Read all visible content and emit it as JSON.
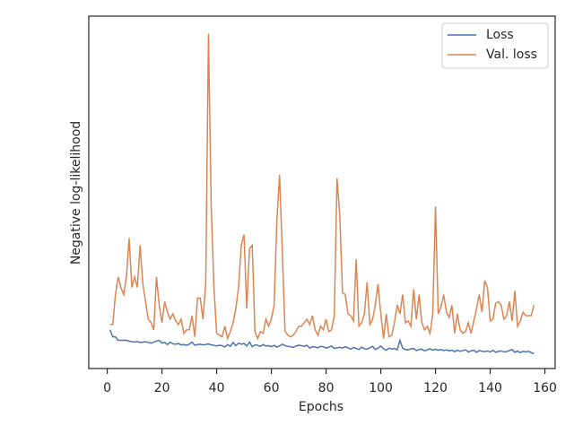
{
  "chart_data": {
    "type": "line",
    "xlabel": "Epochs",
    "ylabel": "Negative log-likelihood",
    "x": [
      1,
      2,
      3,
      4,
      5,
      6,
      7,
      8,
      9,
      10,
      11,
      12,
      13,
      14,
      15,
      16,
      17,
      18,
      19,
      20,
      21,
      22,
      23,
      24,
      25,
      26,
      27,
      28,
      29,
      30,
      31,
      32,
      33,
      34,
      35,
      36,
      37,
      38,
      39,
      40,
      41,
      42,
      43,
      44,
      45,
      46,
      47,
      48,
      49,
      50,
      51,
      52,
      53,
      54,
      55,
      56,
      57,
      58,
      59,
      60,
      61,
      62,
      63,
      64,
      65,
      66,
      67,
      68,
      69,
      70,
      71,
      72,
      73,
      74,
      75,
      76,
      77,
      78,
      79,
      80,
      81,
      82,
      83,
      84,
      85,
      86,
      87,
      88,
      89,
      90,
      91,
      92,
      93,
      94,
      95,
      96,
      97,
      98,
      99,
      100,
      101,
      102,
      103,
      104,
      105,
      106,
      107,
      108,
      109,
      110,
      111,
      112,
      113,
      114,
      115,
      116,
      117,
      118,
      119,
      120,
      121,
      122,
      123,
      124,
      125,
      126,
      127,
      128,
      129,
      130,
      131,
      132,
      133,
      134,
      135,
      136,
      137,
      138,
      139,
      140,
      141,
      142,
      143,
      144,
      145,
      146,
      147,
      148,
      149,
      150,
      151,
      152,
      153,
      154,
      155,
      156
    ],
    "series": [
      {
        "name": "Loss",
        "color": "#4c72b0",
        "values": [
          11,
          9,
          9,
          8,
          8,
          8,
          8,
          7.8,
          7.6,
          7.5,
          7.7,
          7.4,
          7.5,
          7.6,
          7.4,
          7.2,
          7.5,
          7.8,
          8,
          7.2,
          7.4,
          6.8,
          7.5,
          7,
          6.9,
          7.1,
          6.7,
          6.8,
          6.6,
          6.9,
          7.5,
          6.6,
          6.8,
          6.9,
          6.7,
          6.8,
          7,
          6.7,
          6.6,
          6.4,
          6.6,
          6.5,
          6.1,
          6.8,
          6.3,
          7.4,
          6.5,
          7.2,
          6.9,
          7.1,
          6.4,
          7.5,
          6.2,
          6.7,
          6.6,
          6.3,
          6.8,
          6.4,
          6.5,
          6.2,
          6.6,
          6.1,
          6.4,
          6.9,
          6.5,
          6.3,
          6.2,
          6,
          6.4,
          6.6,
          6.5,
          6.3,
          6.6,
          5.8,
          6.2,
          6.1,
          5.9,
          6.3,
          6.2,
          5.8,
          6.1,
          6.4,
          5.7,
          5.9,
          6,
          5.8,
          6.2,
          5.9,
          5.5,
          6,
          5.7,
          5.4,
          6.1,
          5.6,
          5.5,
          5.9,
          6.3,
          5.4,
          5.8,
          6.4,
          5.6,
          5.2,
          5.8,
          5.5,
          5.7,
          5.3,
          8,
          5.8,
          5.4,
          5.3,
          5.6,
          5.7,
          5.1,
          5.4,
          5.5,
          5,
          5.3,
          5.6,
          5.2,
          5.5,
          5.2,
          5.4,
          5.1,
          5.3,
          5,
          5.2,
          4.8,
          5.2,
          4.9,
          5.1,
          5.3,
          4.7,
          5,
          5.2,
          4.6,
          5.1,
          4.9,
          4.8,
          5,
          4.7,
          5.2,
          4.6,
          4.9,
          5,
          4.7,
          4.8,
          5.1,
          5.4,
          4.6,
          5,
          4.5,
          4.9,
          4.7,
          4.9,
          4.5,
          4.2
        ]
      },
      {
        "name": "Val. loss",
        "color": "#dd8452",
        "values": [
          12.5,
          12.5,
          21,
          26,
          23,
          21,
          26,
          37,
          23,
          26,
          23,
          35,
          24,
          19,
          14,
          13,
          11,
          26,
          18,
          13,
          19,
          16,
          14,
          15.5,
          13.5,
          12.5,
          14,
          10,
          11,
          11,
          15,
          9,
          20,
          20,
          14,
          24,
          95,
          46,
          23,
          10,
          9.5,
          9,
          12,
          8.5,
          10.5,
          13,
          17,
          23,
          35,
          38,
          17,
          34,
          35,
          10.5,
          8.5,
          10.5,
          10,
          14,
          12,
          14,
          18,
          42,
          55,
          33,
          10.5,
          9.5,
          9,
          9.5,
          10.5,
          12,
          12,
          13,
          14,
          12.5,
          15,
          11,
          9.5,
          12,
          11,
          14,
          10.5,
          11,
          15,
          54,
          43.5,
          21.5,
          21,
          15.5,
          15,
          13.5,
          31,
          12,
          13,
          15.5,
          24.5,
          12.5,
          14,
          18,
          24,
          15.5,
          8.5,
          15.5,
          9,
          9.5,
          13,
          18,
          15.5,
          21,
          13,
          13.5,
          12,
          22.5,
          14,
          21,
          13,
          11,
          12,
          10,
          15.5,
          46,
          15.5,
          17.5,
          21,
          16,
          14.5,
          18,
          10,
          15.5,
          11,
          10,
          10.5,
          13,
          10,
          13.5,
          17,
          21,
          16,
          25,
          23,
          13.5,
          14,
          18.5,
          19,
          18,
          14,
          15,
          19,
          13.5,
          22,
          12,
          13.5,
          16,
          15,
          15,
          15,
          18
        ]
      }
    ],
    "xlim": [
      -6.75,
      163.75
    ],
    "xticks": [
      0,
      20,
      40,
      60,
      80,
      100,
      120,
      140,
      160
    ],
    "ylim": [
      0,
      100
    ],
    "legend": "upper right"
  }
}
